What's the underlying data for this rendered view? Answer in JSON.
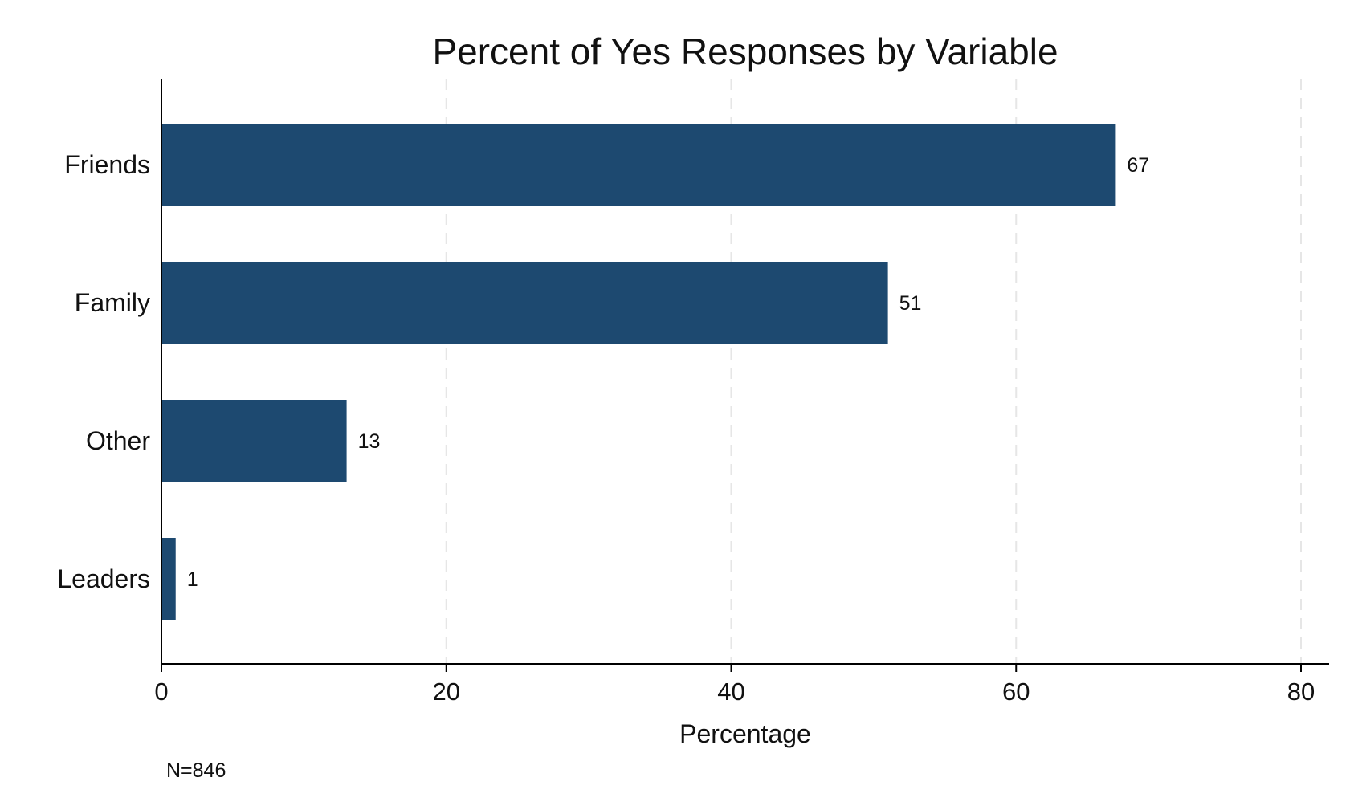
{
  "chart_data": {
    "type": "bar",
    "orientation": "horizontal",
    "title": "Percent of Yes Responses by Variable",
    "xlabel": "Percentage",
    "ylabel": "",
    "categories": [
      "Friends",
      "Family",
      "Other",
      "Leaders"
    ],
    "values": [
      67,
      51,
      13,
      1
    ],
    "data_labels": [
      "67",
      "51",
      "13",
      "1"
    ],
    "xlim": [
      0,
      80
    ],
    "xticks": [
      0,
      20,
      40,
      60,
      80
    ],
    "xtick_labels": [
      "0",
      "20",
      "40",
      "60",
      "80"
    ],
    "grid": "vertical dashed",
    "bar_color": "#1d4970",
    "note": "N=846"
  }
}
